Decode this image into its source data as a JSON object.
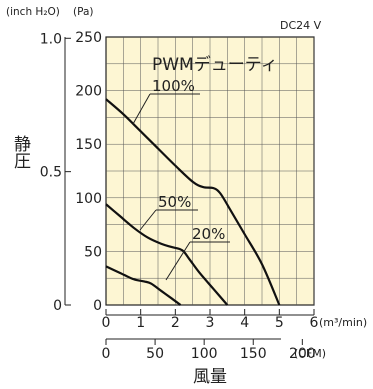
{
  "chart_data": {
    "type": "line",
    "title": "PWMデューティ",
    "voltage_label": "DC24 V",
    "ylabel": "静圧",
    "xlabel": "風量",
    "y_unit_inch": "(inch H₂O)",
    "y_unit_pa": "(Pa)",
    "x_unit_m3": "(m³/min)",
    "x_unit_cfm": "(CFM)",
    "y_pa_range": [
      0,
      250
    ],
    "y_pa_ticks": [
      "0",
      "50",
      "100",
      "150",
      "200",
      "250"
    ],
    "y_inch_ticks": [
      {
        "label": "1.0",
        "value": 248.8
      },
      {
        "label": "0.5",
        "value": 124.4
      },
      {
        "label": "0",
        "value": 0
      }
    ],
    "x_m3_range": [
      0,
      6
    ],
    "x_m3_ticks": [
      "0",
      "1",
      "2",
      "3",
      "4",
      "5",
      "6"
    ],
    "x_cfm_ticks": [
      {
        "label": "0",
        "value": 0
      },
      {
        "label": "50",
        "value": 50
      },
      {
        "label": "100",
        "value": 100
      },
      {
        "label": "150",
        "value": 150
      },
      {
        "label": "200",
        "value": 200
      }
    ],
    "grid": true,
    "background_color": "#fdf6d3",
    "series": [
      {
        "name": "100%",
        "points": [
          [
            0,
            192
          ],
          [
            0.5,
            178
          ],
          [
            1,
            162
          ],
          [
            1.5,
            146
          ],
          [
            2,
            130
          ],
          [
            2.5,
            115
          ],
          [
            2.8,
            110
          ],
          [
            3.1,
            109
          ],
          [
            3.3,
            104
          ],
          [
            3.6,
            88
          ],
          [
            4,
            66
          ],
          [
            4.5,
            38
          ],
          [
            5,
            0
          ]
        ]
      },
      {
        "name": "50%",
        "points": [
          [
            0,
            94
          ],
          [
            0.4,
            83
          ],
          [
            0.8,
            72
          ],
          [
            1.2,
            63
          ],
          [
            1.6,
            57
          ],
          [
            1.9,
            54
          ],
          [
            2.2,
            51
          ],
          [
            2.4,
            43
          ],
          [
            2.7,
            30
          ],
          [
            3.1,
            15
          ],
          [
            3.5,
            0
          ]
        ]
      },
      {
        "name": "20%",
        "points": [
          [
            0,
            36
          ],
          [
            0.4,
            30
          ],
          [
            0.8,
            24
          ],
          [
            1.1,
            22
          ],
          [
            1.3,
            20
          ],
          [
            1.6,
            13
          ],
          [
            1.9,
            6
          ],
          [
            2.15,
            0
          ]
        ]
      }
    ]
  }
}
